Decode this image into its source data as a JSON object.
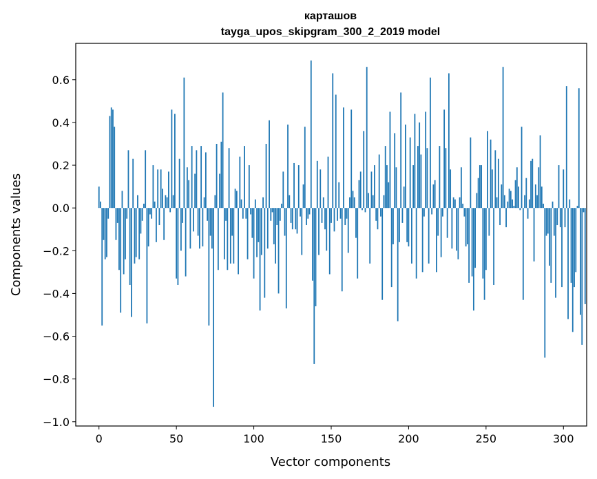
{
  "chart_data": {
    "type": "bar",
    "title": "карташов",
    "subtitle": "tayga_upos_skipgram_300_2_2019 model",
    "xlabel": "Vector components",
    "ylabel": "Components values",
    "xlim": [
      -15,
      315
    ],
    "ylim": [
      -1.02,
      0.77
    ],
    "xticks": [
      0,
      50,
      100,
      150,
      200,
      250,
      300
    ],
    "xtick_labels": [
      "0",
      "50",
      "100",
      "150",
      "200",
      "250",
      "300"
    ],
    "yticks": [
      -1.0,
      -0.8,
      -0.6,
      -0.4,
      -0.2,
      0.0,
      0.2,
      0.4,
      0.6
    ],
    "ytick_labels": [
      "−1.0",
      "−0.8",
      "−0.6",
      "−0.4",
      "−0.2",
      "0.0",
      "0.2",
      "0.4",
      "0.6"
    ],
    "grid": false,
    "bar_color": "#1f77b4",
    "values": [
      0.1,
      0.03,
      -0.55,
      -0.15,
      -0.24,
      -0.23,
      -0.05,
      0.43,
      0.47,
      0.46,
      0.38,
      -0.15,
      -0.07,
      -0.29,
      -0.49,
      0.08,
      -0.31,
      -0.24,
      -0.05,
      0.27,
      -0.36,
      -0.51,
      0.23,
      -0.26,
      -0.23,
      0.06,
      -0.24,
      -0.12,
      -0.06,
      0.02,
      0.27,
      -0.54,
      -0.18,
      -0.03,
      -0.05,
      0.2,
      0.03,
      -0.16,
      0.18,
      -0.08,
      0.18,
      0.09,
      -0.15,
      0.06,
      0.05,
      0.17,
      -0.02,
      0.46,
      0.06,
      0.44,
      -0.33,
      -0.36,
      0.23,
      -0.2,
      -0.07,
      0.61,
      -0.32,
      0.19,
      0.13,
      -0.19,
      0.29,
      -0.11,
      0.16,
      0.27,
      -0.13,
      -0.19,
      0.29,
      -0.18,
      0.05,
      0.26,
      -0.06,
      -0.55,
      -0.13,
      -0.19,
      -0.93,
      0.06,
      0.3,
      -0.29,
      0.16,
      0.31,
      0.54,
      -0.24,
      -0.06,
      -0.29,
      0.28,
      -0.26,
      -0.13,
      -0.26,
      0.09,
      0.08,
      -0.31,
      0.24,
      0.04,
      -0.05,
      0.29,
      -0.05,
      -0.24,
      0.2,
      -0.03,
      -0.14,
      -0.33,
      0.04,
      -0.23,
      -0.16,
      -0.48,
      -0.22,
      0.05,
      -0.42,
      0.3,
      -0.19,
      0.41,
      -0.06,
      -0.02,
      -0.17,
      -0.26,
      -0.08,
      -0.4,
      -0.06,
      0.02,
      0.17,
      -0.13,
      -0.47,
      0.39,
      0.06,
      -0.07,
      -0.1,
      0.21,
      -0.1,
      -0.12,
      0.2,
      -0.04,
      -0.22,
      0.11,
      0.38,
      -0.08,
      -0.05,
      -0.03,
      0.69,
      -0.34,
      -0.73,
      -0.46,
      0.22,
      -0.22,
      0.18,
      -0.07,
      0.05,
      -0.1,
      -0.2,
      0.24,
      -0.31,
      -0.07,
      0.63,
      -0.11,
      0.53,
      -0.06,
      0.12,
      -0.05,
      -0.39,
      0.47,
      -0.08,
      -0.05,
      -0.21,
      0.05,
      0.46,
      0.08,
      0.05,
      -0.14,
      -0.33,
      0.13,
      0.17,
      -0.01,
      0.36,
      -0.02,
      0.66,
      0.07,
      -0.26,
      0.17,
      0.06,
      0.2,
      -0.06,
      -0.1,
      0.25,
      -0.04,
      -0.43,
      0.06,
      0.29,
      0.2,
      0.12,
      0.45,
      -0.37,
      -0.17,
      0.35,
      0.19,
      -0.53,
      -0.16,
      0.54,
      -0.07,
      0.1,
      0.39,
      -0.16,
      -0.18,
      0.33,
      -0.26,
      0.2,
      0.44,
      -0.33,
      0.29,
      0.4,
      0.25,
      -0.3,
      -0.04,
      0.45,
      0.28,
      -0.26,
      0.61,
      -0.03,
      0.11,
      0.13,
      -0.3,
      -0.13,
      0.29,
      -0.23,
      -0.04,
      0.46,
      0.28,
      -0.14,
      0.63,
      0.18,
      -0.19,
      0.05,
      0.04,
      -0.2,
      -0.24,
      0.05,
      0.19,
      0.02,
      -0.04,
      -0.18,
      -0.17,
      -0.35,
      0.33,
      -0.32,
      -0.48,
      -0.28,
      0.07,
      0.14,
      0.2,
      0.2,
      -0.33,
      -0.43,
      -0.29,
      0.36,
      -0.13,
      0.32,
      0.18,
      -0.36,
      0.27,
      0.05,
      0.23,
      -0.08,
      0.11,
      0.66,
      0.06,
      -0.09,
      0.03,
      0.09,
      0.08,
      0.04,
      0.01,
      0.13,
      0.19,
      0.1,
      -0.01,
      0.38,
      -0.43,
      0.06,
      0.14,
      -0.05,
      0.04,
      0.22,
      0.23,
      -0.25,
      0.11,
      0.06,
      0.19,
      0.34,
      0.1,
      0.02,
      -0.7,
      -0.13,
      -0.12,
      -0.27,
      -0.35,
      0.03,
      -0.13,
      -0.42,
      -0.08,
      0.2,
      -0.09,
      -0.37,
      0.18,
      -0.09,
      0.57,
      -0.52,
      0.04,
      -0.35,
      -0.58,
      -0.37,
      -0.3,
      0.01,
      0.56,
      -0.5,
      -0.64,
      -0.02,
      -0.45
    ]
  }
}
